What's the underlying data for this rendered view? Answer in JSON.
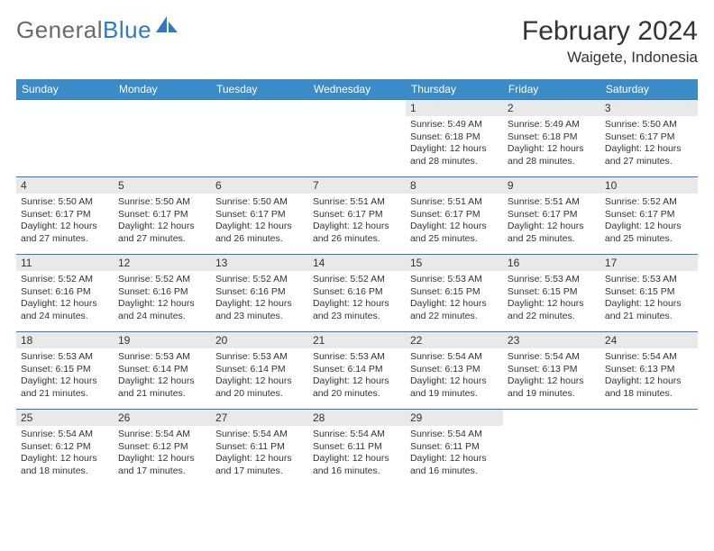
{
  "logo": {
    "text1": "General",
    "text2": "Blue"
  },
  "title": "February 2024",
  "location": "Waigete, Indonesia",
  "colors": {
    "header_bg": "#3b8bc9",
    "border": "#2f7bbf",
    "daynum_bg": "#e9e9e9",
    "text": "#333333",
    "logo_gray": "#6a6a6a",
    "logo_blue": "#2f7bbf"
  },
  "weekdays": [
    "Sunday",
    "Monday",
    "Tuesday",
    "Wednesday",
    "Thursday",
    "Friday",
    "Saturday"
  ],
  "font": {
    "day_text_size": 10.5,
    "day_num_size": 12,
    "header_size": 12,
    "title_size": 30,
    "location_size": 17
  },
  "grid": [
    [
      null,
      null,
      null,
      null,
      {
        "n": "1",
        "sr": "5:49 AM",
        "ss": "6:18 PM",
        "dl": "12 hours and 28 minutes."
      },
      {
        "n": "2",
        "sr": "5:49 AM",
        "ss": "6:18 PM",
        "dl": "12 hours and 28 minutes."
      },
      {
        "n": "3",
        "sr": "5:50 AM",
        "ss": "6:17 PM",
        "dl": "12 hours and 27 minutes."
      }
    ],
    [
      {
        "n": "4",
        "sr": "5:50 AM",
        "ss": "6:17 PM",
        "dl": "12 hours and 27 minutes."
      },
      {
        "n": "5",
        "sr": "5:50 AM",
        "ss": "6:17 PM",
        "dl": "12 hours and 27 minutes."
      },
      {
        "n": "6",
        "sr": "5:50 AM",
        "ss": "6:17 PM",
        "dl": "12 hours and 26 minutes."
      },
      {
        "n": "7",
        "sr": "5:51 AM",
        "ss": "6:17 PM",
        "dl": "12 hours and 26 minutes."
      },
      {
        "n": "8",
        "sr": "5:51 AM",
        "ss": "6:17 PM",
        "dl": "12 hours and 25 minutes."
      },
      {
        "n": "9",
        "sr": "5:51 AM",
        "ss": "6:17 PM",
        "dl": "12 hours and 25 minutes."
      },
      {
        "n": "10",
        "sr": "5:52 AM",
        "ss": "6:17 PM",
        "dl": "12 hours and 25 minutes."
      }
    ],
    [
      {
        "n": "11",
        "sr": "5:52 AM",
        "ss": "6:16 PM",
        "dl": "12 hours and 24 minutes."
      },
      {
        "n": "12",
        "sr": "5:52 AM",
        "ss": "6:16 PM",
        "dl": "12 hours and 24 minutes."
      },
      {
        "n": "13",
        "sr": "5:52 AM",
        "ss": "6:16 PM",
        "dl": "12 hours and 23 minutes."
      },
      {
        "n": "14",
        "sr": "5:52 AM",
        "ss": "6:16 PM",
        "dl": "12 hours and 23 minutes."
      },
      {
        "n": "15",
        "sr": "5:53 AM",
        "ss": "6:15 PM",
        "dl": "12 hours and 22 minutes."
      },
      {
        "n": "16",
        "sr": "5:53 AM",
        "ss": "6:15 PM",
        "dl": "12 hours and 22 minutes."
      },
      {
        "n": "17",
        "sr": "5:53 AM",
        "ss": "6:15 PM",
        "dl": "12 hours and 21 minutes."
      }
    ],
    [
      {
        "n": "18",
        "sr": "5:53 AM",
        "ss": "6:15 PM",
        "dl": "12 hours and 21 minutes."
      },
      {
        "n": "19",
        "sr": "5:53 AM",
        "ss": "6:14 PM",
        "dl": "12 hours and 21 minutes."
      },
      {
        "n": "20",
        "sr": "5:53 AM",
        "ss": "6:14 PM",
        "dl": "12 hours and 20 minutes."
      },
      {
        "n": "21",
        "sr": "5:53 AM",
        "ss": "6:14 PM",
        "dl": "12 hours and 20 minutes."
      },
      {
        "n": "22",
        "sr": "5:54 AM",
        "ss": "6:13 PM",
        "dl": "12 hours and 19 minutes."
      },
      {
        "n": "23",
        "sr": "5:54 AM",
        "ss": "6:13 PM",
        "dl": "12 hours and 19 minutes."
      },
      {
        "n": "24",
        "sr": "5:54 AM",
        "ss": "6:13 PM",
        "dl": "12 hours and 18 minutes."
      }
    ],
    [
      {
        "n": "25",
        "sr": "5:54 AM",
        "ss": "6:12 PM",
        "dl": "12 hours and 18 minutes."
      },
      {
        "n": "26",
        "sr": "5:54 AM",
        "ss": "6:12 PM",
        "dl": "12 hours and 17 minutes."
      },
      {
        "n": "27",
        "sr": "5:54 AM",
        "ss": "6:11 PM",
        "dl": "12 hours and 17 minutes."
      },
      {
        "n": "28",
        "sr": "5:54 AM",
        "ss": "6:11 PM",
        "dl": "12 hours and 16 minutes."
      },
      {
        "n": "29",
        "sr": "5:54 AM",
        "ss": "6:11 PM",
        "dl": "12 hours and 16 minutes."
      },
      null,
      null
    ]
  ],
  "labels": {
    "sunrise": "Sunrise:",
    "sunset": "Sunset:",
    "daylight": "Daylight:"
  }
}
